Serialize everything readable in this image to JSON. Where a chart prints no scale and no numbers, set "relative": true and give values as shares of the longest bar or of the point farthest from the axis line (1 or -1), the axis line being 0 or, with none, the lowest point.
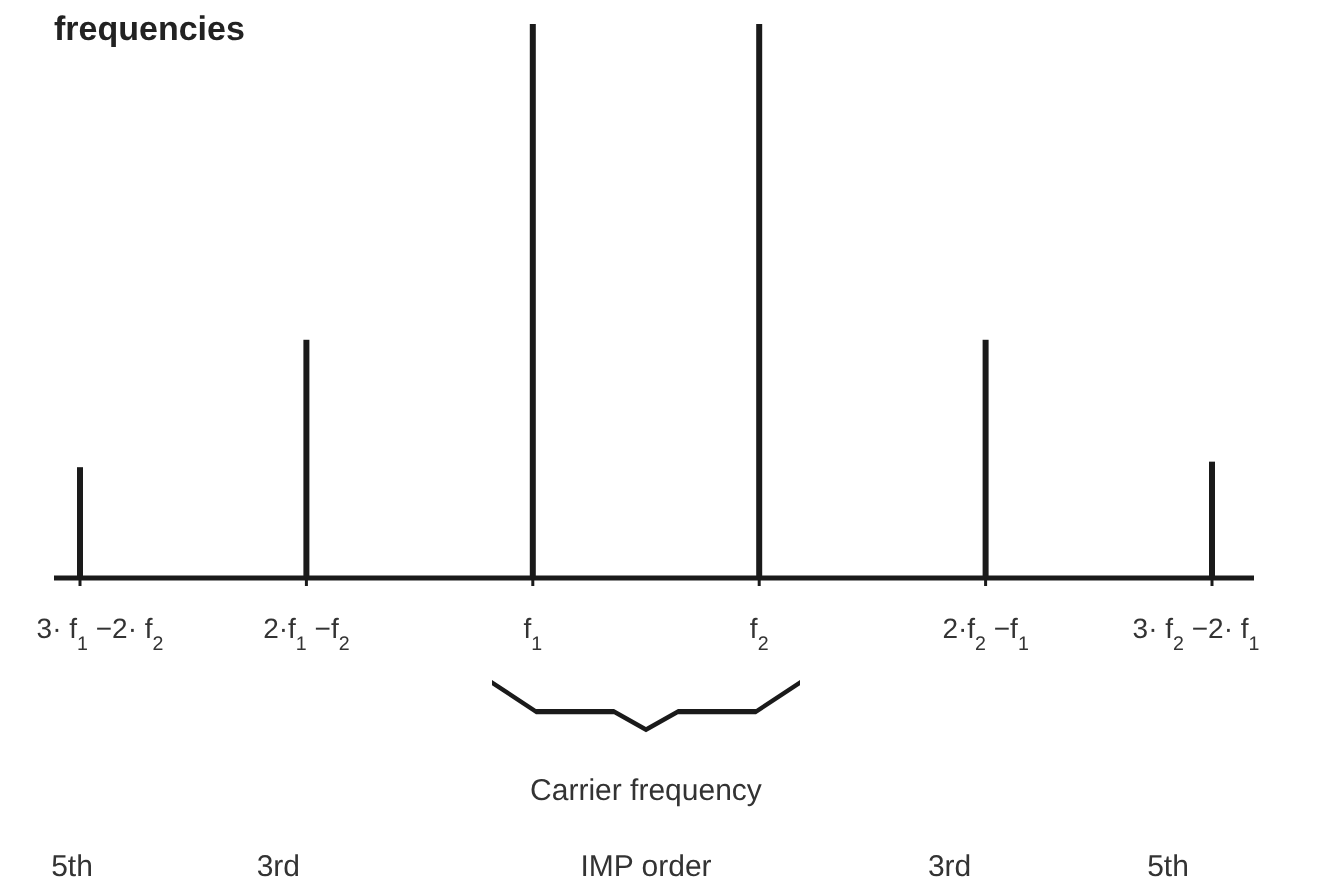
{
  "chart_data": {
    "type": "bar",
    "title": "frequencies",
    "relative": true,
    "categories": [
      "3· f$_{1}$ −2· f$_{2}$",
      "2·f$_{1}$ −f$_{2}$",
      "f$_{1}$",
      "f$_{2}$",
      "2·f$_{2}$ −f$_{1}$",
      "3· f$_{2}$ −2· f$_{1}$"
    ],
    "values": [
      0.2,
      0.43,
      1,
      1,
      0.43,
      0.21
    ],
    "color": "#1a1a1a",
    "annotations": [
      "Carrier frequency",
      "5th",
      "3rd",
      "IMP order",
      "3rd",
      "5th"
    ]
  }
}
